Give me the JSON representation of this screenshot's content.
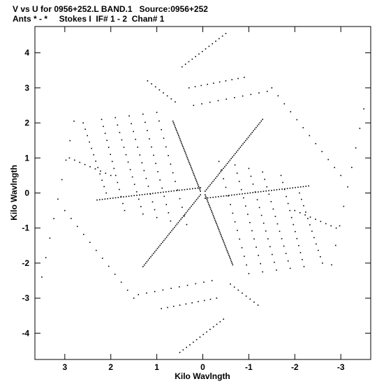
{
  "header": {
    "line1": "V vs U for 0956+252.L BAND.1   Source:0956+252",
    "line2": "Ants * - *     Stokes I  IF# 1 - 2  Chan# 1"
  },
  "chart_data": {
    "type": "scatter",
    "xlabel": "Kilo Wavlngth",
    "ylabel": "Kilo Wavlngth",
    "xlim": [
      3.65,
      -3.65
    ],
    "ylim": [
      -4.75,
      4.75
    ],
    "xticks": [
      3,
      2,
      1,
      0,
      -1,
      -2,
      -3
    ],
    "yticks": [
      4,
      3,
      2,
      1,
      0,
      -1,
      -2,
      -3,
      -4
    ],
    "grid": false,
    "series": [
      {
        "marker": "dot",
        "description_points": "uv-coverage six-pointed star; points generated along baseline tracks",
        "tracks": [
          {
            "u0": 2.8,
            "v0": 2.05,
            "u1": 3.5,
            "v1": -2.4,
            "n": 9
          },
          {
            "u0": 2.6,
            "v0": 2.0,
            "u1": 2.1,
            "v1": 0.0,
            "n": 12
          },
          {
            "u0": 2.2,
            "v0": 2.1,
            "u1": 1.7,
            "v1": -0.5,
            "n": 14
          },
          {
            "u0": 1.9,
            "v0": 2.15,
            "u1": 1.3,
            "v1": -0.6,
            "n": 14
          },
          {
            "u0": 1.6,
            "v0": 2.2,
            "u1": 1.0,
            "v1": -0.7,
            "n": 14
          },
          {
            "u0": 1.3,
            "v0": 2.25,
            "u1": 0.7,
            "v1": -0.8,
            "n": 14
          },
          {
            "u0": 1.0,
            "v0": 2.3,
            "u1": 0.35,
            "v1": -0.9,
            "n": 14
          },
          {
            "u0": 0.45,
            "v0": 3.6,
            "u1": -0.5,
            "v1": 4.55,
            "n": 14
          },
          {
            "u0": -2.8,
            "v0": -2.05,
            "u1": -3.5,
            "v1": 2.4,
            "n": 9
          },
          {
            "u0": -2.6,
            "v0": -2.0,
            "u1": -2.1,
            "v1": 0.0,
            "n": 12
          },
          {
            "u0": -2.2,
            "v0": -2.1,
            "u1": -1.7,
            "v1": 0.5,
            "n": 14
          },
          {
            "u0": -1.9,
            "v0": -2.15,
            "u1": -1.3,
            "v1": 0.6,
            "n": 14
          },
          {
            "u0": -1.6,
            "v0": -2.2,
            "u1": -1.0,
            "v1": 0.7,
            "n": 14
          },
          {
            "u0": -1.3,
            "v0": -2.25,
            "u1": -0.7,
            "v1": 0.8,
            "n": 14
          },
          {
            "u0": -1.0,
            "v0": -2.3,
            "u1": -0.35,
            "v1": 0.9,
            "n": 14
          },
          {
            "u0": -0.45,
            "v0": -3.6,
            "u1": 0.5,
            "v1": -4.55,
            "n": 14
          },
          {
            "u0": 0.05,
            "v0": 0.15,
            "u1": 2.3,
            "v1": -0.2,
            "n": 40
          },
          {
            "u0": -0.05,
            "v0": -0.15,
            "u1": -2.3,
            "v1": 0.2,
            "n": 40
          },
          {
            "u0": 0.05,
            "v0": -0.05,
            "u1": 1.3,
            "v1": -2.1,
            "n": 45
          },
          {
            "u0": -0.05,
            "v0": 0.05,
            "u1": -1.3,
            "v1": 2.1,
            "n": 45
          },
          {
            "u0": 0.05,
            "v0": 0.05,
            "u1": 0.65,
            "v1": 2.05,
            "n": 45
          },
          {
            "u0": -0.05,
            "v0": -0.05,
            "u1": -0.65,
            "v1": -2.05,
            "n": 45
          },
          {
            "u0": 3.0,
            "v0": -0.5,
            "u1": 1.5,
            "v1": -3.0,
            "n": 12
          },
          {
            "u0": 2.9,
            "v0": 1.0,
            "u1": 2.0,
            "v1": 0.5,
            "n": 9
          },
          {
            "u0": 1.2,
            "v0": 3.2,
            "u1": 0.6,
            "v1": 2.6,
            "n": 8
          },
          {
            "u0": -3.0,
            "v0": 0.5,
            "u1": -1.5,
            "v1": 3.0,
            "n": 12
          },
          {
            "u0": -2.9,
            "v0": -1.0,
            "u1": -2.0,
            "v1": -0.5,
            "n": 9
          },
          {
            "u0": -1.2,
            "v0": -3.2,
            "u1": -0.6,
            "v1": -2.6,
            "n": 8
          },
          {
            "u0": 0.3,
            "v0": 3.0,
            "u1": -0.9,
            "v1": 3.3,
            "n": 10
          },
          {
            "u0": -0.3,
            "v0": -3.0,
            "u1": 0.9,
            "v1": -3.3,
            "n": 10
          },
          {
            "u0": 0.2,
            "v0": 2.5,
            "u1": -1.4,
            "v1": 2.9,
            "n": 10
          },
          {
            "u0": -0.2,
            "v0": -2.5,
            "u1": 1.4,
            "v1": -2.9,
            "n": 10
          }
        ]
      }
    ]
  }
}
